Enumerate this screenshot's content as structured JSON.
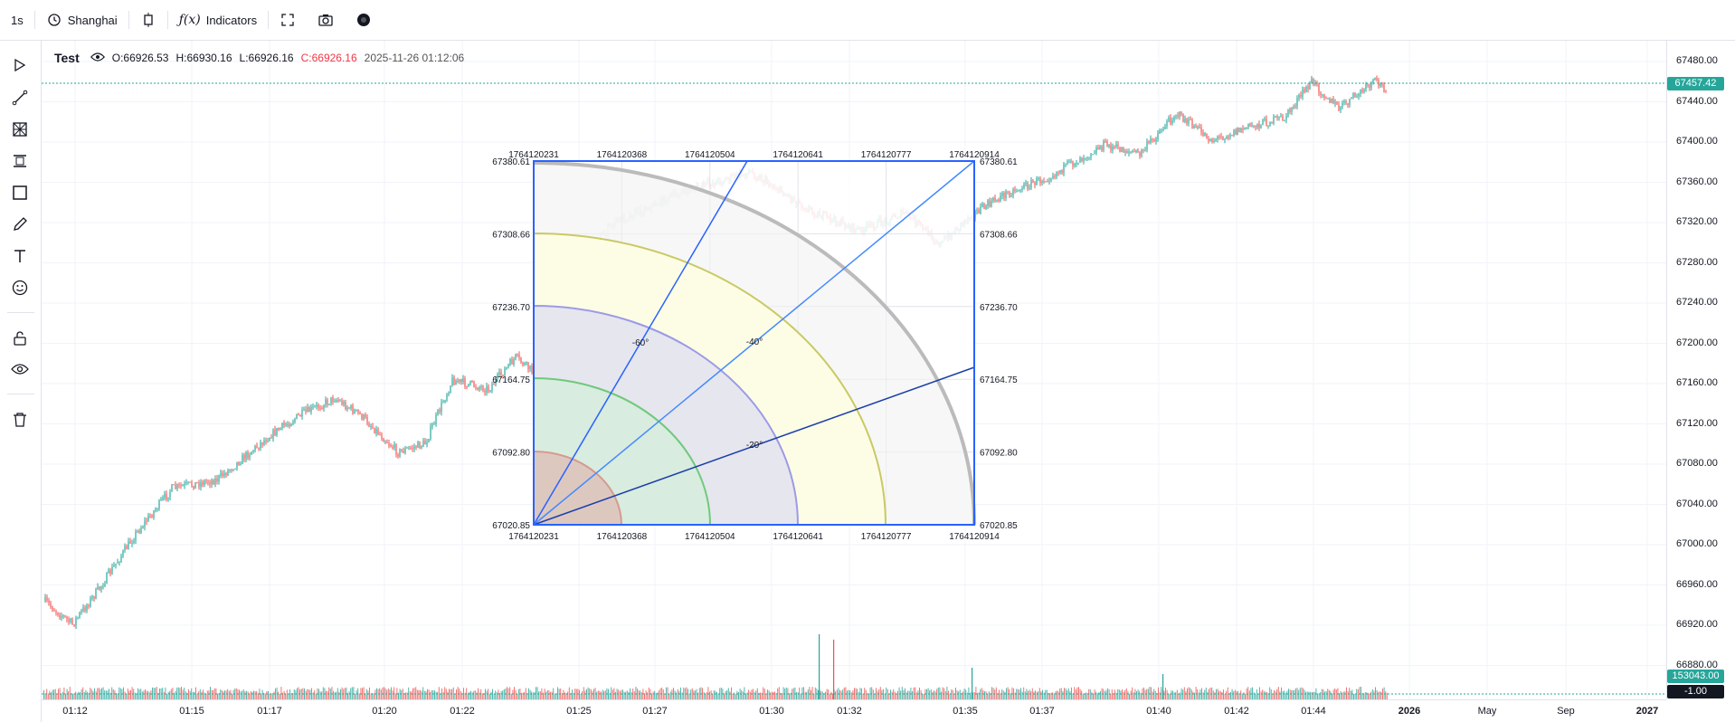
{
  "toolbar": {
    "interval": "1s",
    "timezone": "Shanghai",
    "indicators": "Indicators",
    "icons": [
      "clock-icon",
      "candles-icon",
      "function-icon",
      "fullscreen-icon",
      "camera-icon",
      "settings-dot-icon"
    ]
  },
  "legend": {
    "name": "Test",
    "open": "O:66926.53",
    "high": "H:66930.16",
    "low": "L:66926.16",
    "close": "C:66926.16",
    "timestamp": "2025-11-26 01:12:06"
  },
  "price_axis": {
    "labels": [
      "67480.00",
      "67440.00",
      "67400.00",
      "67360.00",
      "67320.00",
      "67280.00",
      "67240.00",
      "67200.00",
      "67160.00",
      "67120.00",
      "67080.00",
      "67040.00",
      "67000.00",
      "66960.00",
      "66920.00",
      "66880.00"
    ],
    "current_price": "67457.42",
    "volume_badge": "153043.00",
    "volume_min_badge": "-1.00"
  },
  "time_axis": {
    "labels": [
      "01:12",
      "01:15",
      "01:17",
      "01:20",
      "01:22",
      "01:25",
      "01:27",
      "01:30",
      "01:32",
      "01:35",
      "01:37",
      "01:40",
      "01:42",
      "01:44",
      "2026",
      "May",
      "Sep",
      "2027"
    ]
  },
  "gann": {
    "top_labels": [
      "1764120231",
      "1764120368",
      "1764120504",
      "1764120641",
      "1764120777",
      "1764120914"
    ],
    "bottom_labels": [
      "1764120231",
      "1764120368",
      "1764120504",
      "1764120641",
      "1764120777",
      "1764120914"
    ],
    "left_labels": [
      "67380.61",
      "67308.66",
      "67236.70",
      "67164.75",
      "67092.80",
      "67020.85"
    ],
    "right_labels": [
      "67380.61",
      "67308.66",
      "67236.70",
      "67164.75",
      "67092.80",
      "67020.85"
    ],
    "angle_labels": [
      "-60°",
      "-40°",
      "-20°"
    ]
  },
  "colors": {
    "up": "#26a69a",
    "down": "#ef5350",
    "gann_frame": "#2962ff",
    "price_badge": "#26a69a"
  }
}
